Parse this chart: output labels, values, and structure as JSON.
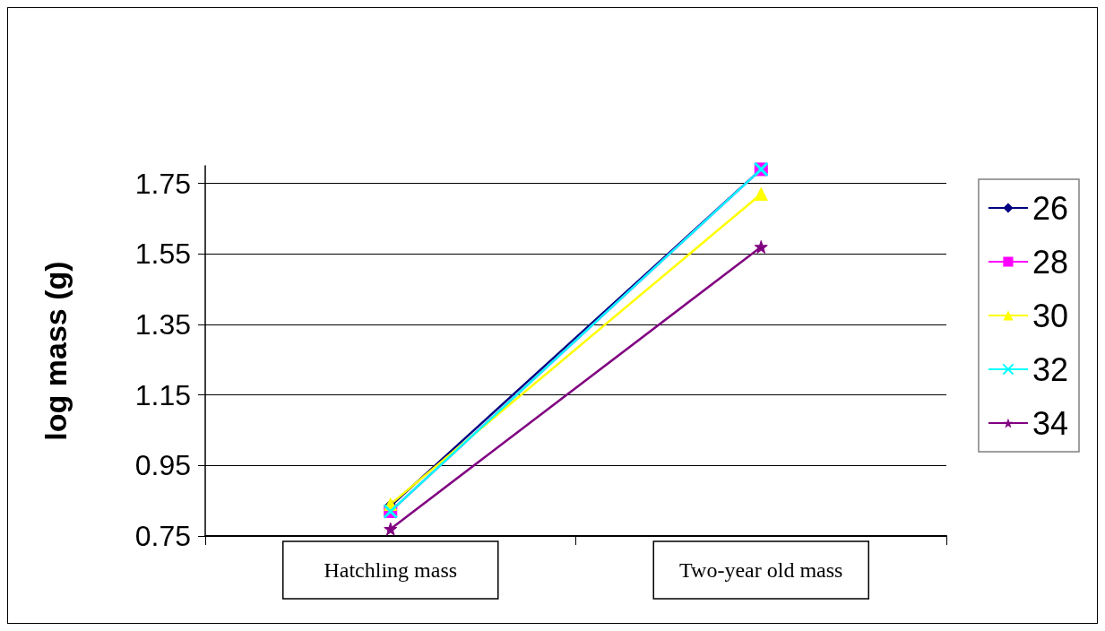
{
  "chart_data": {
    "type": "line",
    "ylabel": "log mass (g)",
    "categories": [
      "Hatchling mass",
      "Two-year old mass"
    ],
    "series": [
      {
        "name": "26",
        "color": "#000080",
        "marker": "diamond",
        "values": [
          0.835,
          1.79
        ]
      },
      {
        "name": "28",
        "color": "#ff00ff",
        "marker": "square",
        "values": [
          0.82,
          1.79
        ]
      },
      {
        "name": "30",
        "color": "#ffff00",
        "marker": "triangle",
        "values": [
          0.84,
          1.72
        ]
      },
      {
        "name": "32",
        "color": "#00ffff",
        "marker": "cross",
        "values": [
          0.82,
          1.79
        ]
      },
      {
        "name": "34",
        "color": "#800080",
        "marker": "star",
        "values": [
          0.77,
          1.57
        ]
      }
    ],
    "ylim": [
      0.75,
      1.8
    ],
    "yticks": [
      0.75,
      0.95,
      1.15,
      1.35,
      1.55,
      1.75
    ],
    "grid": "y",
    "legend": "right",
    "line_style": "solid"
  }
}
